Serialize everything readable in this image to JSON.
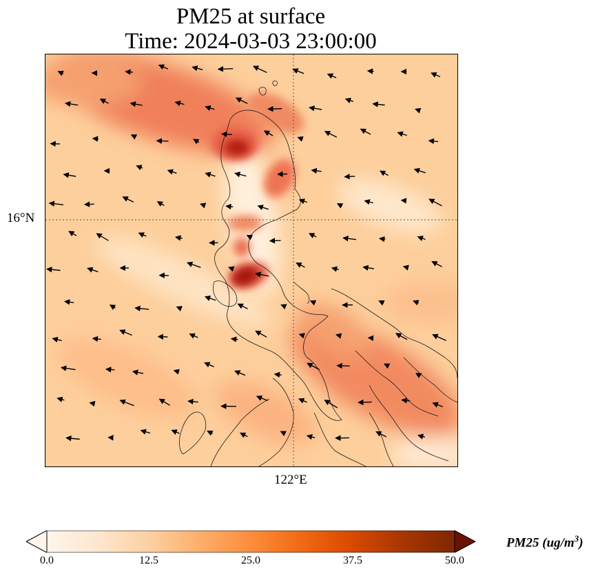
{
  "title": {
    "line1": "PM25 at surface",
    "line2": "Time: 2024-03-03 23:00:00"
  },
  "map": {
    "lat_label": "16°N",
    "lon_label": "122°E",
    "gridlines": "dotted",
    "wind_vectors": "shown"
  },
  "colorbar": {
    "label": "PM25 (ug/m",
    "label_superscript": "3",
    "label_suffix": ")",
    "min": 0.0,
    "max": 50.0,
    "ticks": [
      "0.0",
      "12.5",
      "25.0",
      "37.5",
      "50.0"
    ],
    "extend": "both",
    "colormap": [
      "#fff5eb",
      "#fee6ce",
      "#fdd0a2",
      "#fdae6b",
      "#fd8d3c",
      "#f16913",
      "#d94801",
      "#a63603",
      "#7f2704"
    ],
    "cmap_name": "OrRd"
  }
}
